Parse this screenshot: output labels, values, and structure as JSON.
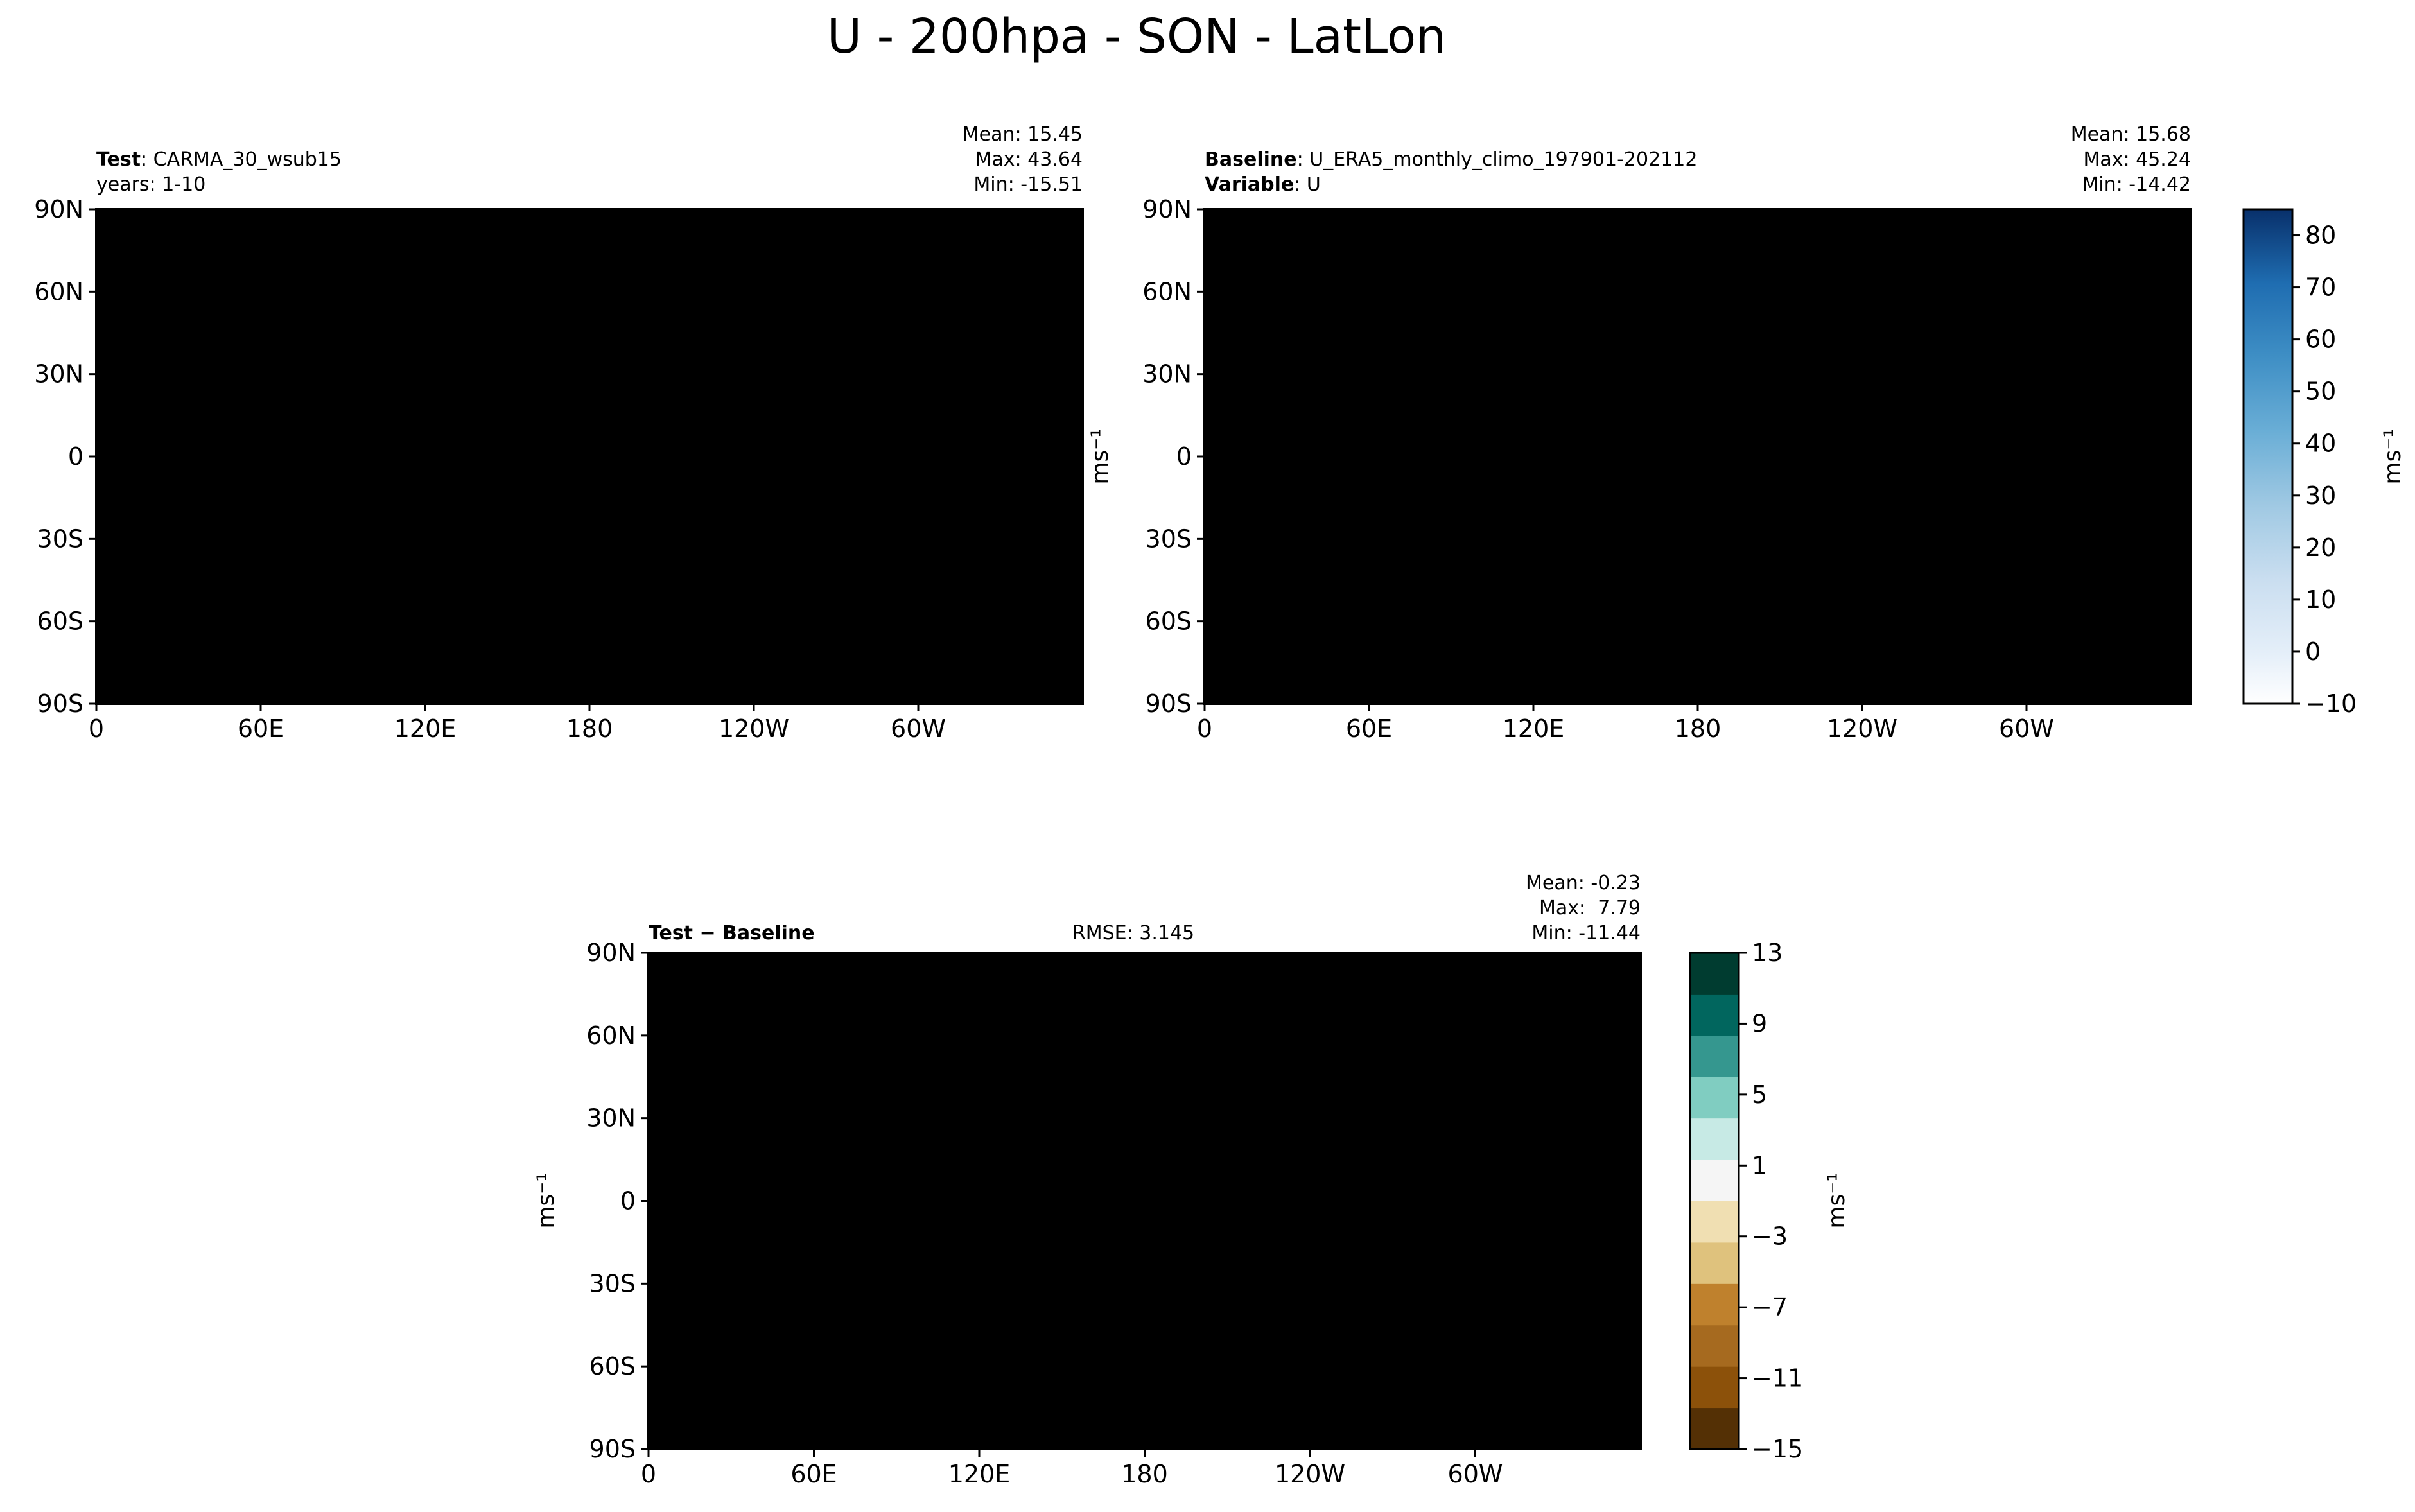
{
  "figure": {
    "title": "U - 200hpa - SON - LatLon"
  },
  "colors": {
    "land_outline": "#000000",
    "blues": [
      "#f7fbff",
      "#e5eff9",
      "#d8e7f5",
      "#cadef0",
      "#b7d4ea",
      "#a0c9e3",
      "#86bcdc",
      "#6aaed6",
      "#549fcd",
      "#3f8fc5",
      "#2e7ebc",
      "#1f6db1",
      "#1460a8",
      "#08509a",
      "#08458a",
      "#083b7c",
      "#08306b"
    ],
    "diverging": [
      "#543005",
      "#8c510a",
      "#a66a1f",
      "#bf812d",
      "#dfc27d",
      "#f0dfb2",
      "#f5f5f5",
      "#c7eae5",
      "#80cdc1",
      "#35978f",
      "#01665e",
      "#003c30"
    ]
  },
  "chart_data": [
    {
      "type": "heatmap",
      "panel": "test",
      "title_bold": "Test",
      "title_text": ": CARMA_30_wsub15",
      "subtitle": "years: 1-10",
      "stats": [
        "Mean: 15.45",
        "Max: 43.64",
        "Min: -15.51"
      ],
      "xticks": [
        "0",
        "60E",
        "120E",
        "180",
        "120W",
        "60W"
      ],
      "yticks": [
        "90N",
        "60N",
        "30N",
        "0",
        "30S",
        "60S",
        "90S"
      ],
      "xlim": [
        0,
        360
      ],
      "ylim": [
        -90,
        90
      ],
      "ylabel": "",
      "units": "ms⁻¹",
      "value_range": [
        -15.51,
        43.64
      ]
    },
    {
      "type": "heatmap",
      "panel": "baseline",
      "title_bold": "Baseline",
      "title_text": ": U_ERA5_monthly_climo_197901-202112",
      "subtitle_bold": "Variable",
      "subtitle_text": ": U",
      "stats": [
        "Mean: 15.68",
        "Max: 45.24",
        "Min: -14.42"
      ],
      "xticks": [
        "0",
        "60E",
        "120E",
        "180",
        "120W",
        "60W"
      ],
      "yticks": [
        "90N",
        "60N",
        "30N",
        "0",
        "30S",
        "60S",
        "90S"
      ],
      "xlim": [
        0,
        360
      ],
      "ylim": [
        -90,
        90
      ],
      "ylabel": "ms⁻¹",
      "colorbar": {
        "ticks": [
          "−10",
          "0",
          "10",
          "20",
          "30",
          "40",
          "50",
          "60",
          "70",
          "80"
        ],
        "range": [
          -10,
          85
        ],
        "label": "ms⁻¹"
      }
    },
    {
      "type": "heatmap",
      "panel": "difference",
      "title_bold": "Test − Baseline",
      "rmse": "RMSE: 3.145",
      "stats": [
        "Mean: -0.23",
        "Max:  7.79",
        "Min: -11.44"
      ],
      "xticks": [
        "0",
        "60E",
        "120E",
        "180",
        "120W",
        "60W"
      ],
      "yticks": [
        "90N",
        "60N",
        "30N",
        "0",
        "30S",
        "60S",
        "90S"
      ],
      "xlim": [
        0,
        360
      ],
      "ylim": [
        -90,
        90
      ],
      "ylabel": "ms⁻¹",
      "colorbar": {
        "ticks": [
          "13",
          "9",
          "5",
          "1",
          "−3",
          "−7",
          "−11",
          "−15"
        ],
        "levels": [
          -15,
          -13,
          -11,
          -9,
          -7,
          -5,
          -3,
          -1,
          1,
          3,
          5,
          9,
          13
        ],
        "label": "ms⁻¹"
      }
    }
  ]
}
